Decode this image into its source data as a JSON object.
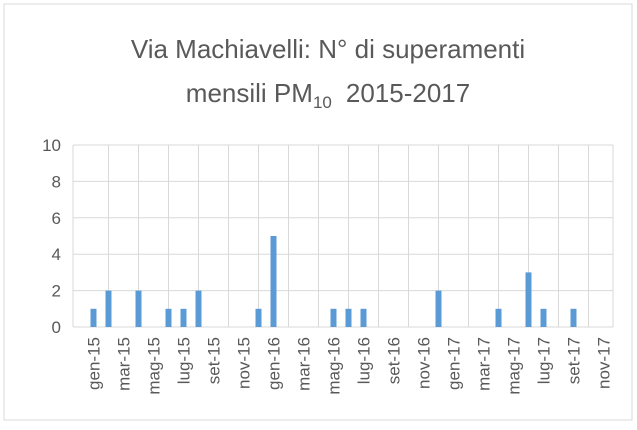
{
  "chart_data": {
    "type": "bar",
    "title": [
      "Via Machiavelli: N° di superamenti",
      "mensili PM",
      "10",
      "2015-2017"
    ],
    "categories": [
      "gen-15",
      null,
      "mar-15",
      null,
      "mag-15",
      null,
      "lug-15",
      null,
      "set-15",
      null,
      "nov-15",
      null,
      "gen-16",
      null,
      "mar-16",
      null,
      "mag-16",
      null,
      "lug-16",
      null,
      "set-16",
      null,
      "nov-16",
      null,
      "gen-17",
      null,
      "mar-17",
      null,
      "mag-17",
      null,
      "lug-17",
      null,
      "set-17",
      null,
      "nov-17"
    ],
    "values": [
      1,
      2,
      0,
      2,
      0,
      1,
      1,
      2,
      0,
      0,
      0,
      1,
      5,
      0,
      0,
      0,
      1,
      1,
      1,
      0,
      0,
      0,
      0,
      2,
      0,
      0,
      0,
      1,
      0,
      3,
      1,
      0,
      1,
      0,
      0
    ],
    "color": "#5b9bd5",
    "ylim": [
      0,
      10
    ],
    "yticks": [
      0,
      2,
      4,
      6,
      8,
      10
    ],
    "grid": true
  }
}
